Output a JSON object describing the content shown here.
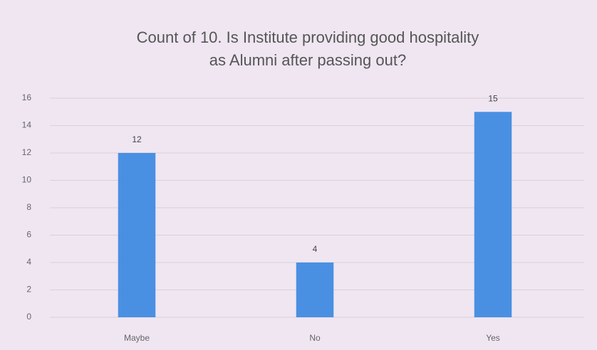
{
  "chart_data": {
    "type": "bar",
    "title": "Count of 10. Is Institute providing good hospitality as Alumni after passing out?",
    "categories": [
      "Maybe",
      "No",
      "Yes"
    ],
    "values": [
      12,
      4,
      15
    ],
    "color": "#4a90e2",
    "ylim": [
      0,
      16
    ],
    "yticks": [
      0,
      2,
      4,
      6,
      8,
      10,
      12,
      14,
      16
    ],
    "grid": true
  }
}
